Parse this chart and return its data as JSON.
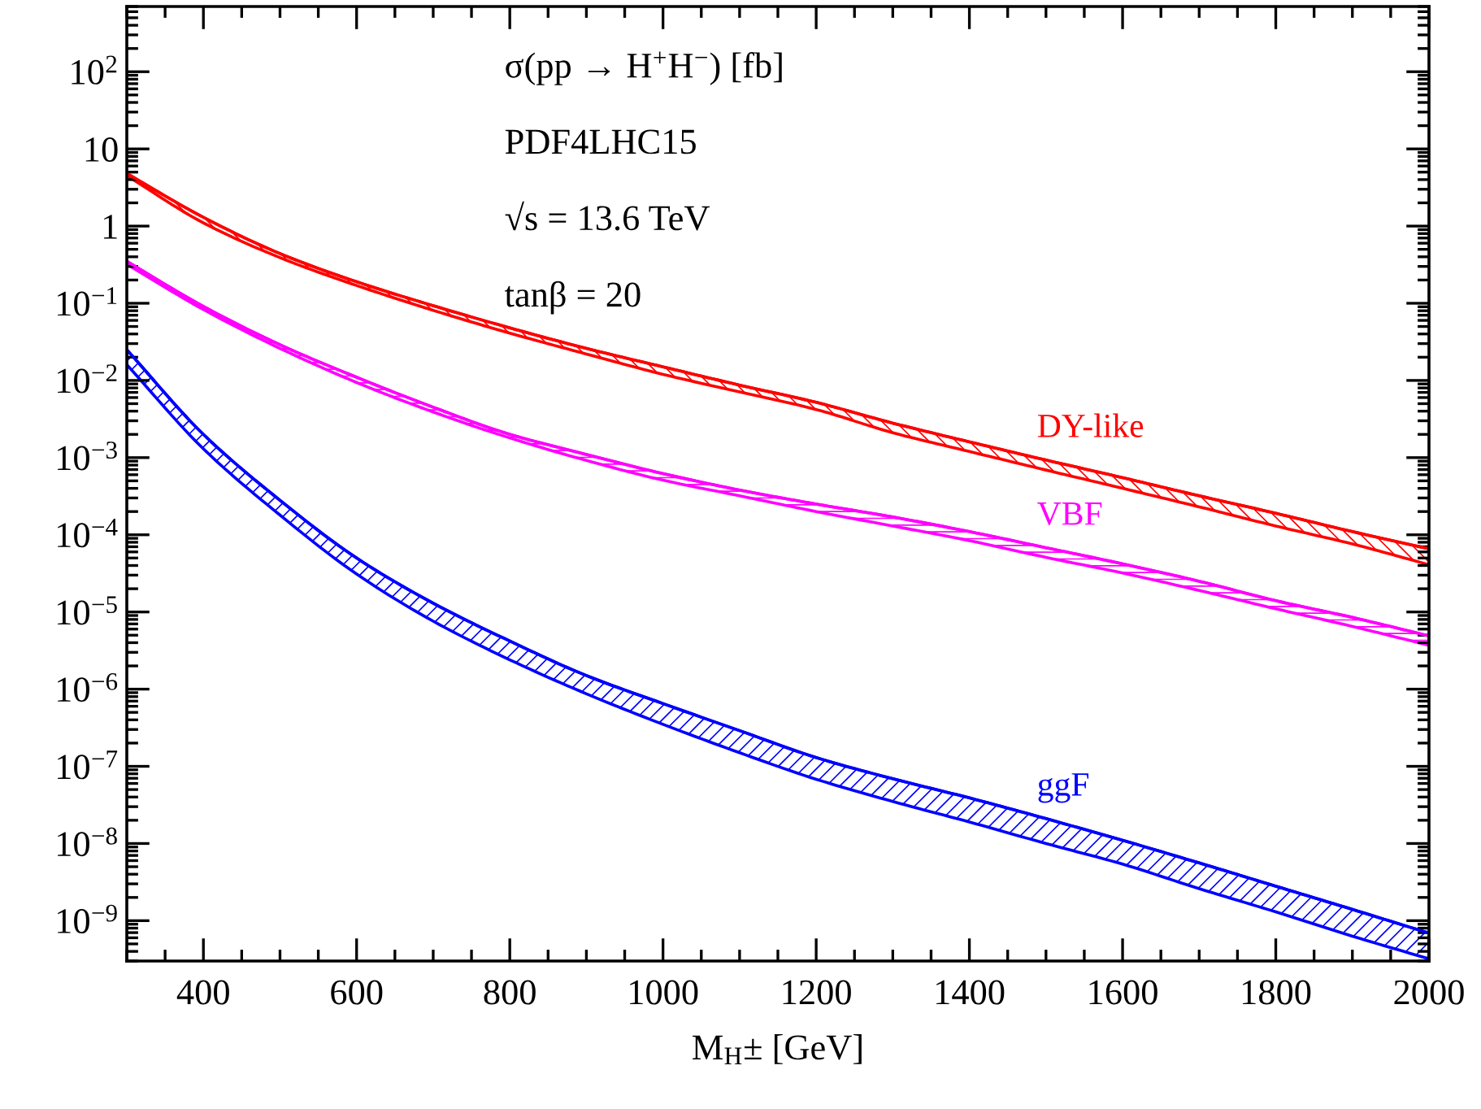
{
  "chart_data": {
    "type": "line",
    "log": "y",
    "grid": false,
    "legend": false,
    "marker": "none",
    "xlabel": "M$_{H}$± [GeV]",
    "annotations": [
      "σ(pp → H$^{+}$H$^{−}$) [fb]",
      "PDF4LHC15",
      "√s = 13.6 TeV",
      "tanβ = 20"
    ],
    "x": [
      300,
      400,
      500,
      600,
      700,
      800,
      900,
      1000,
      1100,
      1200,
      1300,
      1400,
      1500,
      1600,
      1700,
      1800,
      1900,
      2000
    ],
    "xlim": [
      300,
      2000
    ],
    "xticks": [
      400,
      600,
      800,
      1000,
      1200,
      1400,
      1600,
      1800,
      2000
    ],
    "ylim": [
      3e-10,
      700
    ],
    "yticks": [
      {
        "value": 100,
        "label": "10$^{2}$"
      },
      10,
      1,
      {
        "value": 0.1,
        "label": "10$^{−1}$"
      },
      {
        "value": 0.01,
        "label": "10$^{−2}$"
      },
      {
        "value": 0.001,
        "label": "10$^{−3}$"
      },
      {
        "value": 0.0001,
        "label": "10$^{−4}$"
      },
      {
        "value": 1e-05,
        "label": "10$^{−5}$"
      },
      {
        "value": 1e-06,
        "label": "10$^{−6}$"
      },
      {
        "value": 1e-07,
        "label": "10$^{−7}$"
      },
      {
        "value": 1e-08,
        "label": "10$^{−8}$"
      },
      {
        "value": 1e-09,
        "label": "10$^{−9}$"
      }
    ],
    "series": [
      {
        "name": "DY-like",
        "color": "#ff0000",
        "values": [
          4.8,
          1.3,
          0.44,
          0.19,
          0.093,
          0.048,
          0.026,
          0.015,
          0.0087,
          0.0052,
          0.0028,
          0.0016,
          0.00093,
          0.00055,
          0.00032,
          0.00019,
          0.00011,
          6.6e-05
        ],
        "upper": [
          4.8,
          1.3,
          0.44,
          0.19,
          0.093,
          0.048,
          0.026,
          0.015,
          0.0087,
          0.0052,
          0.0028,
          0.0016,
          0.00093,
          0.00055,
          0.00032,
          0.00019,
          0.00011,
          6.6e-05
        ],
        "lower": [
          4.5,
          1.1,
          0.39,
          0.17,
          0.081,
          0.041,
          0.022,
          0.012,
          0.0071,
          0.0042,
          0.0021,
          0.0012,
          0.00069,
          0.0004,
          0.00023,
          0.00013,
          7.6e-05,
          4.1e-05
        ]
      },
      {
        "name": "VBF",
        "color": "#ff00ff",
        "values": [
          0.35,
          0.091,
          0.029,
          0.011,
          0.0045,
          0.002,
          0.0011,
          0.00062,
          0.00038,
          0.00025,
          0.00017,
          0.00011,
          6.8e-05,
          4.2e-05,
          2.5e-05,
          1.4e-05,
          8.5e-06,
          4.9e-06
        ],
        "upper": [
          0.35,
          0.091,
          0.029,
          0.011,
          0.0045,
          0.002,
          0.0011,
          0.00062,
          0.00038,
          0.00025,
          0.00017,
          0.00011,
          6.8e-05,
          4.2e-05,
          2.5e-05,
          1.4e-05,
          8.5e-06,
          4.9e-06
        ],
        "lower": [
          0.32,
          0.083,
          0.026,
          0.0094,
          0.0039,
          0.0018,
          0.00092,
          0.00051,
          0.00032,
          0.0002,
          0.00013,
          8.4e-05,
          5.1e-05,
          3.2e-05,
          1.9e-05,
          1.1e-05,
          6.5e-06,
          3.7e-06
        ]
      },
      {
        "name": "ggF",
        "color": "#0000ff",
        "values": [
          0.025,
          0.002,
          0.00028,
          5e-05,
          1.3e-05,
          4.2e-06,
          1.5e-06,
          6.5e-07,
          2.9e-07,
          1.3e-07,
          6.9e-08,
          3.9e-08,
          2.1e-08,
          1.1e-08,
          5.6e-09,
          2.8e-09,
          1.4e-09,
          6.9e-10
        ],
        "upper": [
          0.025,
          0.002,
          0.00028,
          5e-05,
          1.3e-05,
          4.2e-06,
          1.5e-06,
          6.5e-07,
          2.9e-07,
          1.3e-07,
          6.9e-08,
          3.9e-08,
          2.1e-08,
          1.1e-08,
          5.6e-09,
          2.8e-09,
          1.4e-09,
          6.9e-10
        ],
        "lower": [
          0.016,
          0.0013,
          0.00018,
          3.1e-05,
          7.6e-06,
          2.4e-06,
          8.7e-07,
          3.5e-07,
          1.5e-07,
          6.8e-08,
          3.5e-08,
          1.9e-08,
          1e-08,
          5.4e-09,
          2.6e-09,
          1.3e-09,
          6.3e-10,
          3.2e-10
        ]
      }
    ]
  }
}
